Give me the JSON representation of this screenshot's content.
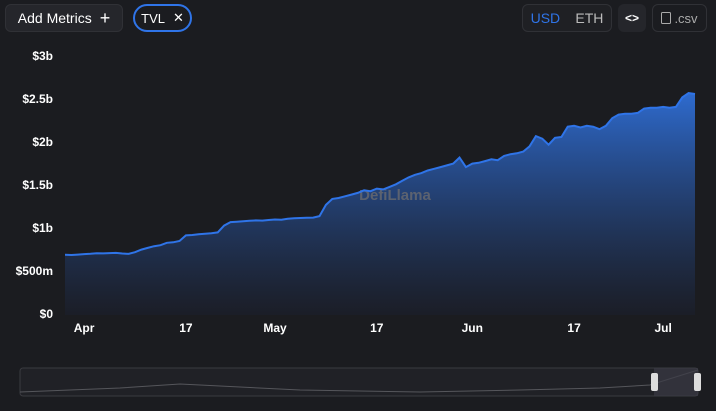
{
  "toolbar": {
    "add_metrics": "Add Metrics",
    "metric": "TVL",
    "currencies": [
      "USD",
      "ETH"
    ],
    "csv": ".csv"
  },
  "watermark": "DefiLlama",
  "chart_data": {
    "type": "area",
    "color": "#2f74e8",
    "grid": false,
    "categories": [
      null,
      null,
      null,
      "Apr",
      null,
      null,
      null,
      null,
      null,
      null,
      null,
      null,
      null,
      null,
      null,
      null,
      null,
      null,
      null,
      "17",
      null,
      null,
      null,
      null,
      null,
      null,
      null,
      null,
      null,
      null,
      null,
      null,
      null,
      "May",
      null,
      null,
      null,
      null,
      null,
      null,
      null,
      null,
      null,
      null,
      null,
      null,
      null,
      null,
      null,
      "17",
      null,
      null,
      null,
      null,
      null,
      null,
      null,
      null,
      null,
      null,
      null,
      null,
      null,
      null,
      "Jun",
      null,
      null,
      null,
      null,
      null,
      null,
      null,
      null,
      null,
      null,
      null,
      null,
      null,
      null,
      null,
      "17",
      null,
      null,
      null,
      null,
      null,
      null,
      null,
      null,
      null,
      null,
      null,
      null,
      null,
      "Jul",
      null,
      null,
      null,
      null,
      null
    ],
    "values": [
      700000000,
      698000000,
      702000000,
      708000000,
      712000000,
      718000000,
      716000000,
      720000000,
      722000000,
      715000000,
      710000000,
      730000000,
      760000000,
      780000000,
      800000000,
      812000000,
      840000000,
      845000000,
      860000000,
      925000000,
      930000000,
      940000000,
      945000000,
      950000000,
      960000000,
      1040000000,
      1080000000,
      1085000000,
      1090000000,
      1095000000,
      1100000000,
      1098000000,
      1105000000,
      1110000000,
      1108000000,
      1120000000,
      1125000000,
      1128000000,
      1130000000,
      1132000000,
      1150000000,
      1280000000,
      1350000000,
      1360000000,
      1380000000,
      1400000000,
      1420000000,
      1450000000,
      1440000000,
      1470000000,
      1460000000,
      1490000000,
      1520000000,
      1560000000,
      1600000000,
      1630000000,
      1650000000,
      1680000000,
      1700000000,
      1720000000,
      1740000000,
      1760000000,
      1830000000,
      1720000000,
      1760000000,
      1770000000,
      1790000000,
      1810000000,
      1800000000,
      1850000000,
      1870000000,
      1880000000,
      1900000000,
      1960000000,
      2080000000,
      2050000000,
      1980000000,
      2060000000,
      2070000000,
      2190000000,
      2200000000,
      2180000000,
      2200000000,
      2190000000,
      2160000000,
      2200000000,
      2290000000,
      2330000000,
      2340000000,
      2340000000,
      2350000000,
      2400000000,
      2410000000,
      2410000000,
      2420000000,
      2410000000,
      2420000000,
      2530000000,
      2580000000,
      2570000000
    ],
    "ylim": [
      0,
      3000000000
    ],
    "yticks": [
      {
        "value": 0,
        "label": "$0"
      },
      {
        "value": 500000000,
        "label": "$500m"
      },
      {
        "value": 1000000000,
        "label": "$1b"
      },
      {
        "value": 1500000000,
        "label": "$1.5b"
      },
      {
        "value": 2000000000,
        "label": "$2b"
      },
      {
        "value": 2500000000,
        "label": "$2.5b"
      },
      {
        "value": 3000000000,
        "label": "$3b"
      }
    ]
  }
}
